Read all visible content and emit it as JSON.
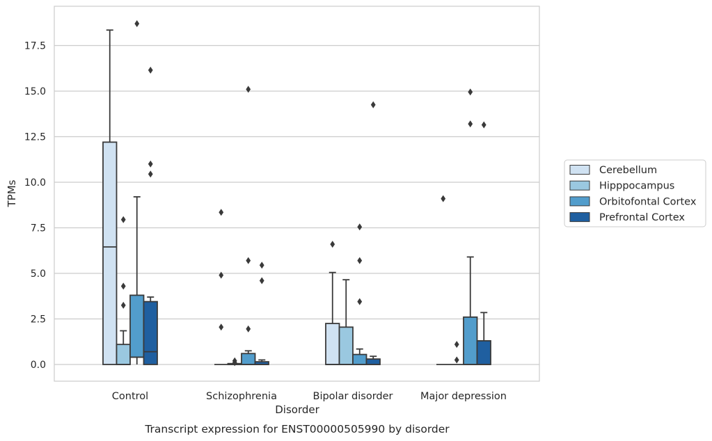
{
  "caption": "Transcript expression for ENST00000505990 by disorder",
  "chart_data": {
    "type": "box",
    "xlabel": "Disorder",
    "ylabel": "TPMs",
    "ylim": [
      -0.9,
      19.6
    ],
    "yticks": [
      0.0,
      2.5,
      5.0,
      7.5,
      10.0,
      12.5,
      15.0,
      17.5
    ],
    "ytick_labels": [
      "0.0",
      "2.5",
      "5.0",
      "7.5",
      "10.0",
      "12.5",
      "15.0",
      "17.5"
    ],
    "grid": "horizontal",
    "legend_position": "right",
    "categories": [
      "Control",
      "Schizophrenia",
      "Bipolar disorder",
      "Major depression"
    ],
    "series": [
      {
        "name": "Cerebellum",
        "color": "#d0e2f2",
        "boxes": [
          {
            "q1": 0.0,
            "median": 6.45,
            "q3": 12.2,
            "whisker_low": 0.0,
            "whisker_high": 18.35,
            "outliers": []
          },
          {
            "q1": 0.0,
            "median": 0.0,
            "q3": 0.0,
            "whisker_low": 0.0,
            "whisker_high": 0.0,
            "outliers": [
              2.05,
              4.9,
              8.35
            ]
          },
          {
            "q1": 0.0,
            "median": 0.0,
            "q3": 2.25,
            "whisker_low": 0.0,
            "whisker_high": 5.05,
            "outliers": [
              6.6
            ]
          },
          {
            "q1": 0.0,
            "median": 0.0,
            "q3": 0.0,
            "whisker_low": 0.0,
            "whisker_high": 0.0,
            "outliers": [
              9.1
            ]
          }
        ]
      },
      {
        "name": "Hipppocampus",
        "color": "#9ac8e0",
        "boxes": [
          {
            "q1": 0.0,
            "median": 0.0,
            "q3": 1.1,
            "whisker_low": 0.0,
            "whisker_high": 1.85,
            "outliers": [
              3.25,
              4.3,
              7.95
            ]
          },
          {
            "q1": 0.0,
            "median": 0.0,
            "q3": 0.05,
            "whisker_low": 0.0,
            "whisker_high": 0.05,
            "outliers": [
              0.1,
              0.2
            ]
          },
          {
            "q1": 0.0,
            "median": 0.0,
            "q3": 2.05,
            "whisker_low": 0.0,
            "whisker_high": 4.65,
            "outliers": []
          },
          {
            "q1": 0.0,
            "median": 0.0,
            "q3": 0.0,
            "whisker_low": 0.0,
            "whisker_high": 0.0,
            "outliers": [
              0.25,
              1.1
            ]
          }
        ]
      },
      {
        "name": "Orbitofontal Cortex",
        "color": "#529dcc",
        "boxes": [
          {
            "q1": 0.4,
            "median": 0.4,
            "q3": 3.8,
            "whisker_low": 0.0,
            "whisker_high": 9.2,
            "outliers": [
              18.7
            ]
          },
          {
            "q1": 0.0,
            "median": 0.0,
            "q3": 0.6,
            "whisker_low": 0.0,
            "whisker_high": 0.75,
            "outliers": [
              1.95,
              5.7,
              15.1
            ]
          },
          {
            "q1": 0.0,
            "median": 0.0,
            "q3": 0.55,
            "whisker_low": 0.0,
            "whisker_high": 0.85,
            "outliers": [
              3.45,
              5.7,
              7.55
            ]
          },
          {
            "q1": 0.0,
            "median": 0.0,
            "q3": 2.6,
            "whisker_low": 0.0,
            "whisker_high": 5.9,
            "outliers": [
              13.2,
              14.95
            ]
          }
        ]
      },
      {
        "name": "Prefrontal Cortex",
        "color": "#1f5fa0",
        "boxes": [
          {
            "q1": 0.0,
            "median": 0.7,
            "q3": 3.45,
            "whisker_low": 0.0,
            "whisker_high": 3.7,
            "outliers": [
              10.45,
              11.0,
              16.15
            ]
          },
          {
            "q1": 0.0,
            "median": 0.0,
            "q3": 0.15,
            "whisker_low": 0.0,
            "whisker_high": 0.25,
            "outliers": [
              4.6,
              5.45
            ]
          },
          {
            "q1": 0.0,
            "median": 0.0,
            "q3": 0.3,
            "whisker_low": 0.0,
            "whisker_high": 0.45,
            "outliers": [
              14.25
            ]
          },
          {
            "q1": 0.0,
            "median": 0.0,
            "q3": 1.3,
            "whisker_low": 0.0,
            "whisker_high": 2.85,
            "outliers": [
              13.15
            ]
          }
        ]
      }
    ]
  }
}
